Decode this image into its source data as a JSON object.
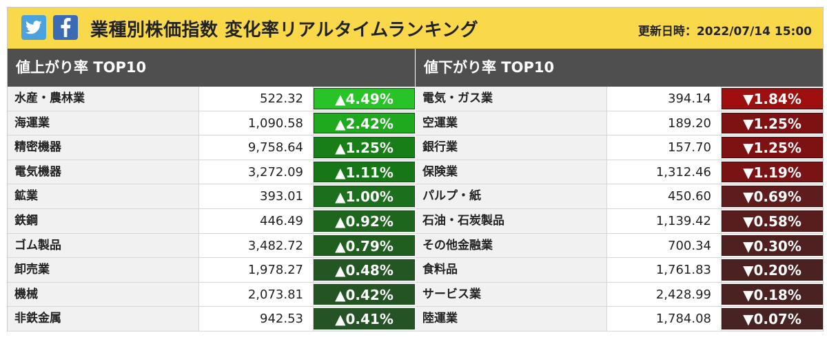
{
  "header": {
    "title": "業種別株価指数 変化率リアルタイムランキング",
    "updated": "更新日時：2022/07/14 15:00",
    "twitter_color": "#4aa3df",
    "facebook_color": "#3b6bb5",
    "icons": [
      "twitter-icon",
      "facebook-icon"
    ]
  },
  "gainers": {
    "heading": "値上がり率 TOP10",
    "rows": [
      {
        "name": "水産・農林業",
        "value": "522.32",
        "change": "▲4.49%",
        "color": "#27c327"
      },
      {
        "name": "海運業",
        "value": "1,090.58",
        "change": "▲2.42%",
        "color": "#1fa91f"
      },
      {
        "name": "精密機器",
        "value": "9,758.64",
        "change": "▲1.25%",
        "color": "#187f18"
      },
      {
        "name": "電気機器",
        "value": "3,272.09",
        "change": "▲1.11%",
        "color": "#177717"
      },
      {
        "name": "鉱業",
        "value": "393.01",
        "change": "▲1.00%",
        "color": "#1c6f1c"
      },
      {
        "name": "鉄鋼",
        "value": "446.49",
        "change": "▲0.92%",
        "color": "#1e661e"
      },
      {
        "name": "ゴム製品",
        "value": "3,482.72",
        "change": "▲0.79%",
        "color": "#205e20"
      },
      {
        "name": "卸売業",
        "value": "1,978.27",
        "change": "▲0.48%",
        "color": "#235623"
      },
      {
        "name": "機械",
        "value": "2,073.81",
        "change": "▲0.42%",
        "color": "#245424"
      },
      {
        "name": "非鉄金属",
        "value": "942.53",
        "change": "▲0.41%",
        "color": "#255325"
      }
    ]
  },
  "losers": {
    "heading": "値下がり率 TOP10",
    "rows": [
      {
        "name": "電気・ガス業",
        "value": "394.14",
        "change": "▼1.84%",
        "color": "#9e0f0f"
      },
      {
        "name": "空運業",
        "value": "189.20",
        "change": "▼1.25%",
        "color": "#7e1111"
      },
      {
        "name": "銀行業",
        "value": "157.70",
        "change": "▼1.25%",
        "color": "#7e1111"
      },
      {
        "name": "保険業",
        "value": "1,312.46",
        "change": "▼1.19%",
        "color": "#7a1313"
      },
      {
        "name": "パルプ・紙",
        "value": "450.60",
        "change": "▼0.69%",
        "color": "#5e1c1c"
      },
      {
        "name": "石油・石炭製品",
        "value": "1,139.42",
        "change": "▼0.58%",
        "color": "#581d1d"
      },
      {
        "name": "その他金融業",
        "value": "700.34",
        "change": "▼0.30%",
        "color": "#4f2020"
      },
      {
        "name": "食料品",
        "value": "1,761.83",
        "change": "▼0.20%",
        "color": "#4b2121"
      },
      {
        "name": "サービス業",
        "value": "2,428.99",
        "change": "▼0.18%",
        "color": "#4a2222"
      },
      {
        "name": "陸運業",
        "value": "1,784.08",
        "change": "▼0.07%",
        "color": "#472323"
      }
    ]
  }
}
